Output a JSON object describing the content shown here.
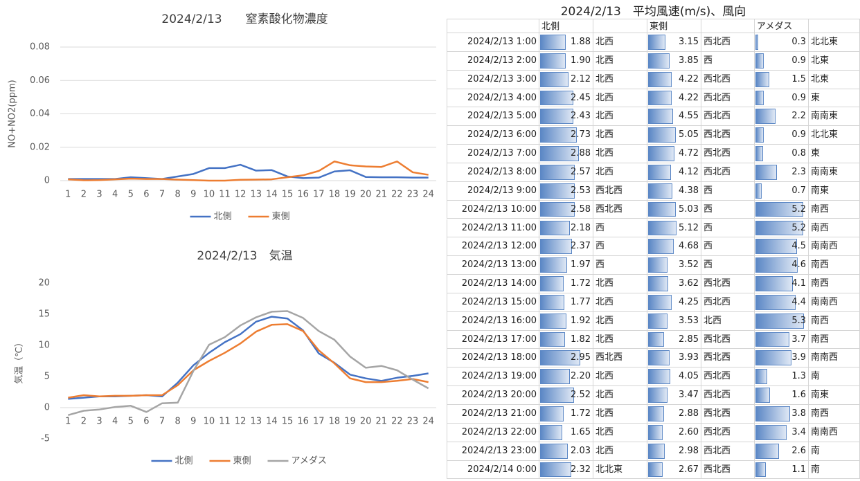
{
  "chart_data": [
    {
      "type": "line",
      "title": "2024/2/13　　窒素酸化物濃度",
      "y_label": "NO+NO2(ppm)",
      "categories": [
        "1",
        "2",
        "3",
        "4",
        "5",
        "6",
        "7",
        "8",
        "9",
        "10",
        "11",
        "12",
        "13",
        "14",
        "15",
        "16",
        "17",
        "18",
        "19",
        "20",
        "21",
        "22",
        "23",
        "24"
      ],
      "series": [
        {
          "name": "北側",
          "color": "#4472c4",
          "values": [
            0.001,
            0.001,
            0.001,
            0.001,
            0.002,
            0.0015,
            0.001,
            0.0025,
            0.004,
            0.0075,
            0.0075,
            0.0095,
            0.006,
            0.0063,
            0.0025,
            0.0015,
            0.0018,
            0.0055,
            0.0062,
            0.0022,
            0.002,
            0.002,
            0.0018,
            0.0018
          ]
        },
        {
          "name": "東側",
          "color": "#ed7d31",
          "values": [
            0.0008,
            0.0002,
            0.0003,
            0.0008,
            0.0012,
            0.001,
            0.001,
            0.0006,
            0.0003,
            0,
            0,
            0.0005,
            0.0006,
            0.0008,
            0.002,
            0.0032,
            0.0058,
            0.0115,
            0.0092,
            0.0085,
            0.0082,
            0.0115,
            0.005,
            0.0035
          ]
        }
      ],
      "ylim": [
        0,
        0.08
      ],
      "yticks": [
        0,
        0.02,
        0.04,
        0.06,
        0.08
      ],
      "grid": true,
      "legend": "bottom"
    },
    {
      "type": "line",
      "title": "2024/2/13　気温",
      "y_label": "気温（℃）",
      "categories": [
        "1",
        "2",
        "3",
        "4",
        "5",
        "6",
        "7",
        "8",
        "9",
        "10",
        "11",
        "12",
        "13",
        "14",
        "15",
        "16",
        "17",
        "18",
        "19",
        "20",
        "21",
        "22",
        "23",
        "24"
      ],
      "series": [
        {
          "name": "北側",
          "color": "#4472c4",
          "values": [
            1.4,
            1.6,
            1.8,
            1.8,
            1.9,
            2.0,
            1.8,
            4.0,
            6.8,
            8.8,
            10.5,
            11.8,
            13.8,
            14.6,
            14.3,
            12.4,
            8.7,
            7.2,
            5.3,
            4.7,
            4.3,
            4.8,
            5.1,
            5.5
          ]
        },
        {
          "name": "東側",
          "color": "#ed7d31",
          "values": [
            1.6,
            2.0,
            1.8,
            1.9,
            1.9,
            2.0,
            2.0,
            3.6,
            6.0,
            7.5,
            8.8,
            10.3,
            12.2,
            13.3,
            13.4,
            12.3,
            9.2,
            7.1,
            4.7,
            4.1,
            4.1,
            4.3,
            4.6,
            4.1
          ]
        },
        {
          "name": "アメダス",
          "color": "#a5a5a5",
          "values": [
            -1.2,
            -0.5,
            -0.3,
            0.1,
            0.3,
            -0.7,
            0.7,
            0.8,
            5.9,
            10.1,
            11.3,
            13.2,
            14.5,
            15.4,
            15.5,
            14.4,
            12.3,
            10.9,
            8.2,
            6.4,
            6.7,
            6.0,
            4.5,
            3.1
          ]
        }
      ],
      "ylim": [
        -5,
        20
      ],
      "yticks": [
        -5,
        0,
        5,
        10,
        15,
        20
      ],
      "grid": false,
      "legend": "bottom"
    }
  ],
  "table": {
    "title": "2024/2/13　平均風速(m/s)、風向",
    "columns": [
      "北側",
      "東側",
      "アメダス"
    ],
    "rows": [
      [
        "2024/2/13 1:00",
        "1.88",
        "北西",
        "3.15",
        "西北西",
        "0.3",
        "北北東"
      ],
      [
        "2024/2/13 2:00",
        "1.90",
        "北西",
        "3.85",
        "西",
        "0.9",
        "北東"
      ],
      [
        "2024/2/13 3:00",
        "2.12",
        "北西",
        "4.22",
        "西北西",
        "1.5",
        "北東"
      ],
      [
        "2024/2/13 4:00",
        "2.45",
        "北西",
        "4.22",
        "西北西",
        "0.9",
        "東"
      ],
      [
        "2024/2/13 5:00",
        "2.43",
        "北西",
        "4.55",
        "西北西",
        "2.2",
        "南南東"
      ],
      [
        "2024/2/13 6:00",
        "2.73",
        "北西",
        "5.05",
        "西北西",
        "0.9",
        "北北東"
      ],
      [
        "2024/2/13 7:00",
        "2.88",
        "北西",
        "4.72",
        "西北西",
        "0.8",
        "東"
      ],
      [
        "2024/2/13 8:00",
        "2.57",
        "北西",
        "4.12",
        "西北西",
        "2.3",
        "南南東"
      ],
      [
        "2024/2/13 9:00",
        "2.53",
        "西北西",
        "4.38",
        "西",
        "0.7",
        "南東"
      ],
      [
        "2024/2/13 10:00",
        "2.58",
        "西北西",
        "5.03",
        "西",
        "5.2",
        "南西"
      ],
      [
        "2024/2/13 11:00",
        "2.18",
        "西",
        "5.12",
        "西",
        "5.2",
        "南西"
      ],
      [
        "2024/2/13 12:00",
        "2.37",
        "西",
        "4.68",
        "西",
        "4.5",
        "南南西"
      ],
      [
        "2024/2/13 13:00",
        "1.97",
        "西",
        "3.52",
        "西",
        "4.6",
        "南西"
      ],
      [
        "2024/2/13 14:00",
        "1.72",
        "北西",
        "3.62",
        "西北西",
        "4.1",
        "南西"
      ],
      [
        "2024/2/13 15:00",
        "1.77",
        "北西",
        "4.25",
        "西北西",
        "4.4",
        "南南西"
      ],
      [
        "2024/2/13 16:00",
        "1.92",
        "北西",
        "3.53",
        "北西",
        "5.3",
        "南西"
      ],
      [
        "2024/2/13 17:00",
        "1.82",
        "北西",
        "2.85",
        "西北西",
        "3.7",
        "南西"
      ],
      [
        "2024/2/13 18:00",
        "2.95",
        "西北西",
        "3.93",
        "西北西",
        "3.9",
        "南南西"
      ],
      [
        "2024/2/13 19:00",
        "2.20",
        "北西",
        "4.05",
        "西北西",
        "1.3",
        "南"
      ],
      [
        "2024/2/13 20:00",
        "2.52",
        "北西",
        "3.47",
        "西北西",
        "1.6",
        "南東"
      ],
      [
        "2024/2/13 21:00",
        "1.72",
        "北西",
        "2.88",
        "西北西",
        "3.8",
        "南西"
      ],
      [
        "2024/2/13 22:00",
        "1.65",
        "北西",
        "2.60",
        "西北西",
        "3.4",
        "南南西"
      ],
      [
        "2024/2/13 23:00",
        "2.03",
        "北西",
        "2.98",
        "西北西",
        "2.6",
        "南"
      ],
      [
        "2024/2/14 0:00",
        "2.32",
        "北北東",
        "2.67",
        "西北西",
        "1.1",
        "南"
      ]
    ]
  }
}
